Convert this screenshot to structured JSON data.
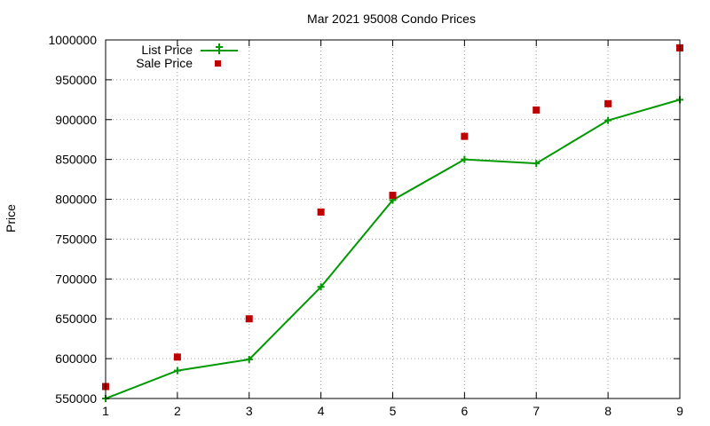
{
  "chart_data": {
    "type": "line",
    "title": "Mar 2021 95008 Condo Prices",
    "xlabel": "",
    "ylabel": "Price",
    "x": [
      1,
      2,
      3,
      4,
      5,
      6,
      7,
      8,
      9
    ],
    "xlim": [
      1,
      9
    ],
    "ylim": [
      550000,
      1000000
    ],
    "xticks": [
      "1",
      "2",
      "3",
      "4",
      "5",
      "6",
      "7",
      "8",
      "9"
    ],
    "yticks": [
      "550000",
      "600000",
      "650000",
      "700000",
      "750000",
      "800000",
      "850000",
      "900000",
      "950000",
      "1000000"
    ],
    "grid": true,
    "legend_position": "top-left",
    "series": [
      {
        "name": "List Price",
        "style": "line-with-plus-markers",
        "color": "#009900",
        "values": [
          550000,
          585000,
          599000,
          690000,
          799000,
          850000,
          845000,
          899000,
          925000
        ]
      },
      {
        "name": "Sale Price",
        "style": "square-markers",
        "color": "#c00000",
        "values": [
          565000,
          602000,
          650000,
          784000,
          805000,
          879000,
          912000,
          920000,
          990000
        ]
      }
    ]
  }
}
